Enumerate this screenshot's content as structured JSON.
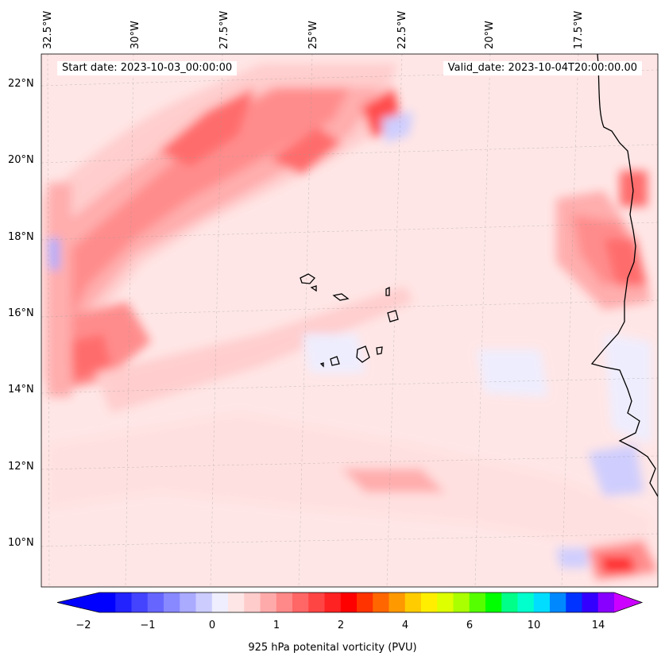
{
  "header": {
    "start_date": "Start date: 2023-10-03_00:00:00",
    "valid_date": "Valid_date: 2023-10-04T20:00:00.00"
  },
  "map": {
    "lon_labels": [
      "32.5°W",
      "30°W",
      "27.5°W",
      "25°W",
      "22.5°W",
      "20°W",
      "17.5°W"
    ],
    "lat_labels": [
      "22°N",
      "20°N",
      "18°N",
      "16°N",
      "14°N",
      "12°N",
      "10°N"
    ],
    "gridlines": true,
    "colors": {
      "background_pv": "#ffe6e6",
      "coast": "#000000"
    }
  },
  "colorbar": {
    "label": "925 hPa potenital vorticity (PVU)",
    "ticks": [
      "−2",
      "−1",
      "0",
      "1",
      "2",
      "4",
      "6",
      "10",
      "14"
    ],
    "colors": [
      "#0000ff",
      "#2222ff",
      "#4444ff",
      "#6666ff",
      "#8888ff",
      "#aaaaff",
      "#ccccff",
      "#eeeeff",
      "#ffe6e6",
      "#ffcccc",
      "#ffaaaa",
      "#ff8888",
      "#ff6666",
      "#ff4444",
      "#ff2222",
      "#ff0000",
      "#ff3300",
      "#ff6600",
      "#ff9900",
      "#ffcc00",
      "#ffee00",
      "#ddff00",
      "#aaff00",
      "#55ff00",
      "#00ff00",
      "#00ff88",
      "#00ffcc",
      "#00ddff",
      "#0088ff",
      "#0033ff",
      "#3300ff",
      "#8800ff"
    ],
    "extend_min_color": "#0000ff",
    "extend_max_color": "#cc00ff"
  }
}
